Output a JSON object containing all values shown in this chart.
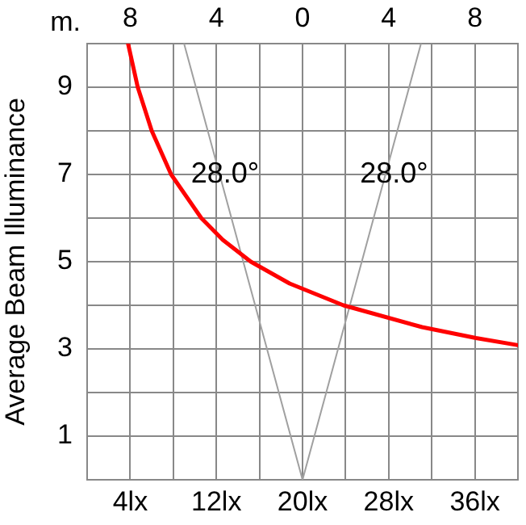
{
  "chart_data": {
    "type": "line",
    "ylabel": "Average Beam Illuminance",
    "x2label": "m.",
    "xlim": [
      0,
      40
    ],
    "xticks": [
      {
        "value": 4,
        "label": "4lx"
      },
      {
        "value": 8,
        "label": null
      },
      {
        "value": 12,
        "label": "12lx"
      },
      {
        "value": 16,
        "label": null
      },
      {
        "value": 20,
        "label": "20lx"
      },
      {
        "value": 24,
        "label": null
      },
      {
        "value": 28,
        "label": "28lx"
      },
      {
        "value": 32,
        "label": null
      },
      {
        "value": 36,
        "label": "36lx"
      },
      {
        "value": 40,
        "label": null
      }
    ],
    "x2lim": [
      -10,
      10
    ],
    "x2ticks": [
      {
        "value": -8,
        "label": "8"
      },
      {
        "value": -6,
        "label": null
      },
      {
        "value": -4,
        "label": "4"
      },
      {
        "value": -2,
        "label": null
      },
      {
        "value": 0,
        "label": "0"
      },
      {
        "value": 2,
        "label": null
      },
      {
        "value": 4,
        "label": "4"
      },
      {
        "value": 6,
        "label": null
      },
      {
        "value": 8,
        "label": "8"
      },
      {
        "value": 10,
        "label": null
      }
    ],
    "ylim": [
      0,
      10
    ],
    "yticks": [
      {
        "value": 0,
        "label": null
      },
      {
        "value": 1,
        "label": "1"
      },
      {
        "value": 2,
        "label": null
      },
      {
        "value": 3,
        "label": "3"
      },
      {
        "value": 4,
        "label": null
      },
      {
        "value": 5,
        "label": "5"
      },
      {
        "value": 6,
        "label": null
      },
      {
        "value": 7,
        "label": "7"
      },
      {
        "value": 8,
        "label": null
      },
      {
        "value": 9,
        "label": "9"
      },
      {
        "value": 10,
        "label": null
      }
    ],
    "series": [
      {
        "color": "#ff0000",
        "x": [
          3.8,
          4.7,
          6.0,
          7.8,
          10.6,
          12.6,
          15.2,
          18.8,
          23.8,
          31.1,
          36.1,
          39.9
        ],
        "values": [
          10,
          9,
          8,
          7,
          6,
          5.5,
          5,
          4.5,
          4,
          3.5,
          3.25,
          3.09
        ]
      },
      {
        "axis": "x2",
        "color": "#a0a0a0",
        "x": [
          -5.5,
          0,
          5.5
        ],
        "values": [
          10,
          0,
          10
        ]
      }
    ],
    "annotations": [
      {
        "text": "28.0°",
        "x": 12.8,
        "y": 7
      },
      {
        "text": "28.0°",
        "x": 28.5,
        "y": 7
      }
    ],
    "grid": true,
    "legend": false,
    "marker": "none"
  }
}
